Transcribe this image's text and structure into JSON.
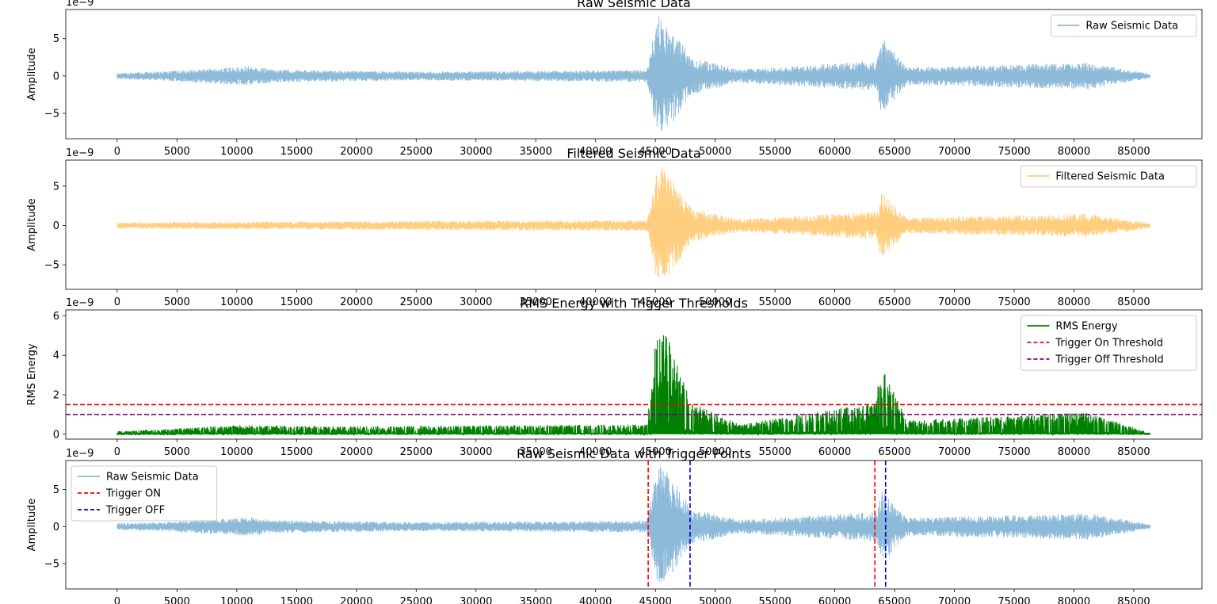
{
  "chart_data": [
    {
      "type": "line",
      "title": "Raw Seismic Data",
      "xlabel": "",
      "ylabel": "Amplitude",
      "offset_text": "1e−9",
      "xlim": [
        -4300,
        90700
      ],
      "ylim": [
        -8.4,
        8.9
      ],
      "xticks": [
        0,
        5000,
        10000,
        15000,
        20000,
        25000,
        30000,
        35000,
        40000,
        45000,
        50000,
        55000,
        60000,
        65000,
        70000,
        75000,
        80000,
        85000
      ],
      "yticks": [
        -5,
        0,
        5
      ],
      "legend": {
        "position": "upper right"
      },
      "series": [
        {
          "name": "Raw Seismic Data",
          "kind": "waveform",
          "color": "#8DBAD9",
          "x_range": [
            0,
            86400
          ],
          "background_amplitude": 0.5,
          "envelope": [
            {
              "x": 0,
              "amp": 0.45
            },
            {
              "x": 3500,
              "amp": 0.6
            },
            {
              "x": 11100,
              "amp": 1.3
            },
            {
              "x": 13000,
              "amp": 0.9
            },
            {
              "x": 20000,
              "amp": 0.7
            },
            {
              "x": 25000,
              "amp": 0.6
            },
            {
              "x": 44300,
              "amp": 0.8
            },
            {
              "x": 45200,
              "amp": 8.5
            },
            {
              "x": 46000,
              "amp": 7.5
            },
            {
              "x": 48000,
              "amp": 2.5
            },
            {
              "x": 52000,
              "amp": 0.9
            },
            {
              "x": 63500,
              "amp": 2.0
            },
            {
              "x": 63900,
              "amp": 5.2
            },
            {
              "x": 66000,
              "amp": 1.2
            },
            {
              "x": 81200,
              "amp": 1.8
            },
            {
              "x": 86400,
              "amp": 0.3
            }
          ]
        }
      ]
    },
    {
      "type": "line",
      "title": "Filtered Seismic Data",
      "xlabel": "",
      "ylabel": "Amplitude",
      "offset_text": "1e−9",
      "xlim": [
        -4300,
        90700
      ],
      "ylim": [
        -8.1,
        8.3
      ],
      "xticks": [
        0,
        5000,
        10000,
        15000,
        20000,
        25000,
        30000,
        35000,
        40000,
        45000,
        50000,
        55000,
        60000,
        65000,
        70000,
        75000,
        80000,
        85000
      ],
      "yticks": [
        -5,
        0,
        5
      ],
      "legend": {
        "position": "upper right"
      },
      "series": [
        {
          "name": "Filtered Seismic Data",
          "kind": "waveform",
          "color": "#FFCE7F",
          "x_range": [
            0,
            86400
          ],
          "background_amplitude": 0.45,
          "envelope": [
            {
              "x": 0,
              "amp": 0.4
            },
            {
              "x": 20000,
              "amp": 0.55
            },
            {
              "x": 44300,
              "amp": 0.7
            },
            {
              "x": 45200,
              "amp": 7.8
            },
            {
              "x": 46000,
              "amp": 7.0
            },
            {
              "x": 48000,
              "amp": 2.2
            },
            {
              "x": 52000,
              "amp": 0.8
            },
            {
              "x": 63500,
              "amp": 1.8
            },
            {
              "x": 63900,
              "amp": 4.4
            },
            {
              "x": 66000,
              "amp": 1.0
            },
            {
              "x": 81200,
              "amp": 1.5
            },
            {
              "x": 86400,
              "amp": 0.3
            }
          ]
        }
      ]
    },
    {
      "type": "area",
      "title": "RMS Energy with Trigger Thresholds",
      "xlabel": "",
      "ylabel": "RMS Energy",
      "offset_text": "1e−9",
      "xlim": [
        -4300,
        90700
      ],
      "ylim": [
        -0.25,
        6.3
      ],
      "xticks": [
        0,
        5000,
        10000,
        15000,
        20000,
        25000,
        30000,
        35000,
        40000,
        45000,
        50000,
        55000,
        60000,
        65000,
        70000,
        75000,
        80000,
        85000
      ],
      "yticks": [
        0,
        2,
        4,
        6
      ],
      "legend": {
        "position": "upper right"
      },
      "series": [
        {
          "name": "RMS Energy",
          "kind": "energy",
          "color": "#008000",
          "x_range": [
            0,
            86400
          ],
          "envelope": [
            {
              "x": 0,
              "amp": 0.15
            },
            {
              "x": 10000,
              "amp": 0.45
            },
            {
              "x": 20000,
              "amp": 0.4
            },
            {
              "x": 44300,
              "amp": 0.5
            },
            {
              "x": 45200,
              "amp": 6.0
            },
            {
              "x": 46500,
              "amp": 4.2
            },
            {
              "x": 48000,
              "amp": 1.6
            },
            {
              "x": 52000,
              "amp": 0.5
            },
            {
              "x": 63400,
              "amp": 1.6
            },
            {
              "x": 63900,
              "amp": 3.6
            },
            {
              "x": 66000,
              "amp": 0.7
            },
            {
              "x": 81200,
              "amp": 1.1
            },
            {
              "x": 86400,
              "amp": 0.05
            }
          ]
        },
        {
          "name": "Trigger On Threshold",
          "kind": "hline",
          "y": 1.5,
          "color": "#FF0000",
          "dash": true
        },
        {
          "name": "Trigger Off Threshold",
          "kind": "hline",
          "y": 1.0,
          "color": "#800080",
          "dash": true
        }
      ]
    },
    {
      "type": "line",
      "title": "Raw Seismic Data with Trigger Points",
      "xlabel": "",
      "ylabel": "Amplitude",
      "offset_text": "1e−9",
      "xlim": [
        -4300,
        90700
      ],
      "ylim": [
        -8.4,
        8.9
      ],
      "xticks": [
        0,
        5000,
        10000,
        15000,
        20000,
        25000,
        30000,
        35000,
        40000,
        45000,
        50000,
        55000,
        60000,
        65000,
        70000,
        75000,
        80000,
        85000
      ],
      "yticks": [
        -5,
        0,
        5
      ],
      "legend": {
        "position": "upper left"
      },
      "series": [
        {
          "name": "Raw Seismic Data",
          "kind": "waveform",
          "color": "#8DBAD9",
          "x_range": [
            0,
            86400
          ],
          "background_amplitude": 0.5,
          "envelope": [
            {
              "x": 0,
              "amp": 0.45
            },
            {
              "x": 3500,
              "amp": 0.6
            },
            {
              "x": 11100,
              "amp": 1.3
            },
            {
              "x": 13000,
              "amp": 0.9
            },
            {
              "x": 20000,
              "amp": 0.7
            },
            {
              "x": 25000,
              "amp": 0.6
            },
            {
              "x": 44300,
              "amp": 0.8
            },
            {
              "x": 45200,
              "amp": 8.5
            },
            {
              "x": 46000,
              "amp": 7.5
            },
            {
              "x": 48000,
              "amp": 2.5
            },
            {
              "x": 52000,
              "amp": 0.9
            },
            {
              "x": 63500,
              "amp": 2.0
            },
            {
              "x": 63900,
              "amp": 5.2
            },
            {
              "x": 66000,
              "amp": 1.2
            },
            {
              "x": 81200,
              "amp": 1.8
            },
            {
              "x": 86400,
              "amp": 0.3
            }
          ]
        },
        {
          "name": "Trigger ON",
          "kind": "vlines",
          "x": [
            44400,
            63350
          ],
          "color": "#FF0000",
          "dash": true
        },
        {
          "name": "Trigger OFF",
          "kind": "vlines",
          "x": [
            47900,
            64250
          ],
          "color": "#0000CC",
          "dash": true
        }
      ]
    }
  ]
}
